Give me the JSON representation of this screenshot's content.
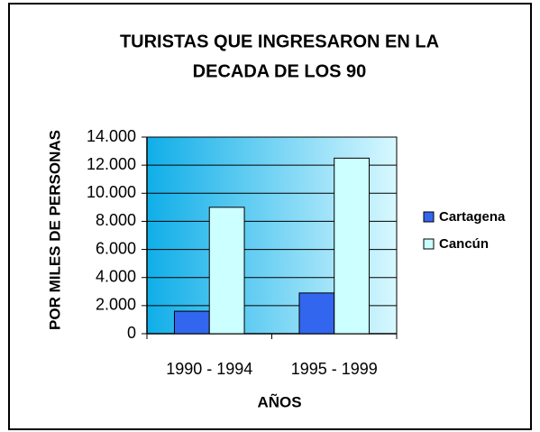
{
  "chart_data": {
    "type": "bar",
    "title": [
      "TURISTAS QUE INGRESARON EN LA",
      "DECADA DE LOS 90"
    ],
    "x_label": "AÑOS",
    "y_label": "POR MILES DE PERSONAS",
    "categories": [
      "1990 - 1994",
      "1995 - 1999"
    ],
    "series": [
      {
        "name": "Cartagena",
        "color": "#3366ee",
        "values": [
          1600,
          2900
        ]
      },
      {
        "name": "Cancún",
        "color": "#ccffff",
        "values": [
          9000,
          12500
        ]
      }
    ],
    "ylim": [
      0,
      14000
    ],
    "yticks": [
      0,
      {
        "value": 2000,
        "label": "2.000"
      },
      {
        "value": 4000,
        "label": "4.000"
      },
      {
        "value": 6000,
        "label": "6.000"
      },
      {
        "value": 8000,
        "label": "8.000"
      },
      {
        "value": 10000,
        "label": "10.000"
      },
      {
        "value": 12000,
        "label": "12.000"
      },
      {
        "value": 14000,
        "label": "14.000"
      }
    ],
    "grid": true,
    "legend": "right"
  }
}
